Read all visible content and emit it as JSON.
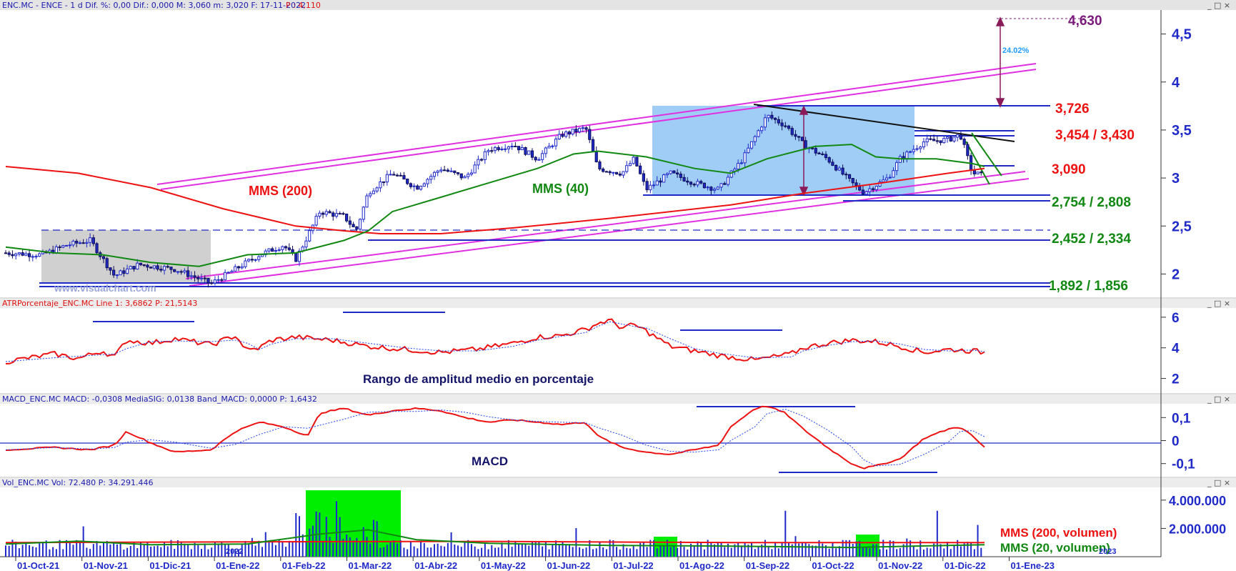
{
  "window": {
    "header_main": "ENC.MC - ENCE -  1 d  Dif. %: 0,00  Dif.: 0,000  M: 3,060  m: 3,020  F: 17-11-2022",
    "header_main_p": "P : 4,110",
    "header_atr": "ATRPorcentaje_ENC.MC  Line 1: 3,6862  P: 21,5143",
    "header_macd": "MACD_ENC.MC  MACD: -0,0308  MediaSIG: 0,0138  Band_MACD: 0,0000  P: 1,6432",
    "header_vol": "Vol_ENC.MC  Vol: 72.480  P: 34.291.446",
    "window_buttons": "_ □ ×",
    "watermark": "www.visualchart.com",
    "year_marker": "2022",
    "year_marker_2": "2023"
  },
  "colors": {
    "up_candle": "#1f2ac8",
    "mms200": "#ee1111",
    "mms40": "#118811",
    "channel": "#e030e0",
    "range_box": "#8fc4f5",
    "grey_box": "#c8c8c8",
    "level_line": "#1f2ac8",
    "target": "#7a1a7a",
    "green_box": "#00ee00",
    "axis_text": "#1f2ac8"
  },
  "chart_data": [
    {
      "type": "candlestick",
      "title": "ENC.MC - ENCE",
      "x_ticks": [
        "01-Oct-21",
        "01-Nov-21",
        "01-Dic-21",
        "01-Ene-22",
        "01-Feb-22",
        "01-Mar-22",
        "01-Abr-22",
        "01-May-22",
        "01-Jun-22",
        "01-Jul-22",
        "01-Ago-22",
        "01-Sep-22",
        "01-Oct-22",
        "01-Nov-22",
        "01-Dic-22",
        "01-Ene-23"
      ],
      "y_ticks": [
        "4,5",
        "4",
        "3,5",
        "3",
        "2,5",
        "2"
      ],
      "ylim": [
        1.75,
        4.75
      ],
      "price_path": [
        [
          0,
          2.22
        ],
        [
          0.03,
          2.2
        ],
        [
          0.05,
          2.3
        ],
        [
          0.07,
          2.35
        ],
        [
          0.09,
          1.98
        ],
        [
          0.11,
          2.1
        ],
        [
          0.14,
          2.05
        ],
        [
          0.17,
          1.9
        ],
        [
          0.19,
          2.05
        ],
        [
          0.21,
          2.2
        ],
        [
          0.23,
          2.3
        ],
        [
          0.24,
          2.15
        ],
        [
          0.26,
          2.65
        ],
        [
          0.28,
          2.6
        ],
        [
          0.29,
          2.45
        ],
        [
          0.3,
          2.85
        ],
        [
          0.32,
          3.05
        ],
        [
          0.34,
          2.9
        ],
        [
          0.36,
          3.1
        ],
        [
          0.38,
          3.0
        ],
        [
          0.4,
          3.3
        ],
        [
          0.42,
          3.35
        ],
        [
          0.44,
          3.2
        ],
        [
          0.46,
          3.45
        ],
        [
          0.48,
          3.52
        ],
        [
          0.49,
          3.1
        ],
        [
          0.51,
          3.05
        ],
        [
          0.52,
          3.2
        ],
        [
          0.53,
          2.88
        ],
        [
          0.55,
          3.05
        ],
        [
          0.57,
          2.95
        ],
        [
          0.59,
          2.88
        ],
        [
          0.61,
          3.2
        ],
        [
          0.63,
          3.65
        ],
        [
          0.645,
          3.55
        ],
        [
          0.66,
          3.35
        ],
        [
          0.68,
          3.2
        ],
        [
          0.7,
          2.95
        ],
        [
          0.71,
          2.85
        ],
        [
          0.73,
          3.0
        ],
        [
          0.74,
          3.2
        ],
        [
          0.76,
          3.38
        ],
        [
          0.78,
          3.4
        ],
        [
          0.79,
          3.45
        ],
        [
          0.8,
          3.05
        ],
        [
          0.81,
          3.03
        ]
      ],
      "mms200_path": [
        [
          0,
          3.12
        ],
        [
          0.06,
          3.05
        ],
        [
          0.12,
          2.9
        ],
        [
          0.18,
          2.68
        ],
        [
          0.24,
          2.5
        ],
        [
          0.28,
          2.45
        ],
        [
          0.31,
          2.42
        ],
        [
          0.36,
          2.42
        ],
        [
          0.42,
          2.48
        ],
        [
          0.5,
          2.58
        ],
        [
          0.6,
          2.72
        ],
        [
          0.66,
          2.84
        ],
        [
          0.72,
          2.94
        ],
        [
          0.78,
          3.05
        ],
        [
          0.81,
          3.1
        ]
      ],
      "mms40_path": [
        [
          0,
          2.28
        ],
        [
          0.04,
          2.22
        ],
        [
          0.08,
          2.2
        ],
        [
          0.12,
          2.12
        ],
        [
          0.16,
          2.08
        ],
        [
          0.2,
          2.2
        ],
        [
          0.24,
          2.22
        ],
        [
          0.28,
          2.35
        ],
        [
          0.3,
          2.45
        ],
        [
          0.32,
          2.65
        ],
        [
          0.36,
          2.8
        ],
        [
          0.4,
          2.95
        ],
        [
          0.44,
          3.1
        ],
        [
          0.47,
          3.25
        ],
        [
          0.49,
          3.28
        ],
        [
          0.53,
          3.22
        ],
        [
          0.57,
          3.1
        ],
        [
          0.6,
          3.05
        ],
        [
          0.63,
          3.2
        ],
        [
          0.67,
          3.33
        ],
        [
          0.7,
          3.35
        ],
        [
          0.72,
          3.22
        ],
        [
          0.74,
          3.2
        ],
        [
          0.77,
          3.2
        ],
        [
          0.8,
          3.15
        ],
        [
          0.81,
          3.12
        ]
      ],
      "annotations": {
        "mms200_label": "MMS (200)",
        "mms40_label": "MMS (40)",
        "target_value": "4,630",
        "target_pct": "24.02%",
        "resistance_1": "3,726",
        "resistance_2": "3,454 / 3,430",
        "support_current": "3,090",
        "support_1": "2,754 / 2,808",
        "support_2": "2,452 / 2,334",
        "support_3": "1,892 / 1,856"
      },
      "levels": [
        3.726,
        3.454,
        3.43,
        3.09,
        2.808,
        2.754,
        2.452,
        2.334,
        1.892,
        1.856,
        4.63
      ],
      "last_close": 3.03
    },
    {
      "type": "line",
      "title": "ATRPorcentaje_ENC.MC",
      "caption": "Rango de amplitud medio en porcentaje",
      "y_ticks": [
        "6",
        "4",
        "2"
      ],
      "ylim": [
        1.0,
        6.6
      ],
      "path": [
        [
          0,
          3.1
        ],
        [
          0.04,
          3.6
        ],
        [
          0.06,
          3.3
        ],
        [
          0.08,
          3.8
        ],
        [
          0.09,
          3.4
        ],
        [
          0.1,
          4.5
        ],
        [
          0.12,
          4.3
        ],
        [
          0.14,
          4.6
        ],
        [
          0.17,
          4.2
        ],
        [
          0.19,
          4.8
        ],
        [
          0.2,
          3.8
        ],
        [
          0.21,
          4.0
        ],
        [
          0.22,
          4.5
        ],
        [
          0.24,
          4.7
        ],
        [
          0.27,
          4.5
        ],
        [
          0.3,
          4.1
        ],
        [
          0.33,
          3.9
        ],
        [
          0.36,
          3.7
        ],
        [
          0.39,
          3.9
        ],
        [
          0.42,
          4.3
        ],
        [
          0.44,
          4.7
        ],
        [
          0.46,
          4.8
        ],
        [
          0.48,
          5.2
        ],
        [
          0.49,
          5.6
        ],
        [
          0.5,
          5.8
        ],
        [
          0.51,
          5.3
        ],
        [
          0.52,
          5.5
        ],
        [
          0.53,
          5.1
        ],
        [
          0.55,
          4.1
        ],
        [
          0.57,
          3.8
        ],
        [
          0.59,
          3.5
        ],
        [
          0.62,
          3.2
        ],
        [
          0.65,
          3.6
        ],
        [
          0.66,
          4.0
        ],
        [
          0.68,
          4.3
        ],
        [
          0.7,
          4.5
        ],
        [
          0.72,
          4.4
        ],
        [
          0.74,
          4.1
        ],
        [
          0.76,
          3.7
        ],
        [
          0.78,
          3.9
        ],
        [
          0.8,
          3.8
        ],
        [
          0.81,
          3.7
        ]
      ]
    },
    {
      "type": "line",
      "title": "MACD_ENC.MC",
      "caption": "MACD",
      "y_ticks": [
        "0,1",
        "0",
        "-0,1"
      ],
      "ylim": [
        -0.16,
        0.16
      ],
      "path": [
        [
          0,
          -0.04
        ],
        [
          0.04,
          -0.03
        ],
        [
          0.07,
          -0.04
        ],
        [
          0.09,
          -0.02
        ],
        [
          0.1,
          0.04
        ],
        [
          0.12,
          -0.01
        ],
        [
          0.14,
          -0.05
        ],
        [
          0.17,
          -0.04
        ],
        [
          0.19,
          0.04
        ],
        [
          0.21,
          0.08
        ],
        [
          0.23,
          0.06
        ],
        [
          0.25,
          0.02
        ],
        [
          0.26,
          0.12
        ],
        [
          0.28,
          0.14
        ],
        [
          0.3,
          0.11
        ],
        [
          0.32,
          0.13
        ],
        [
          0.34,
          0.14
        ],
        [
          0.36,
          0.13
        ],
        [
          0.38,
          0.1
        ],
        [
          0.4,
          0.08
        ],
        [
          0.42,
          0.09
        ],
        [
          0.44,
          0.08
        ],
        [
          0.46,
          0.07
        ],
        [
          0.48,
          0.08
        ],
        [
          0.49,
          0.02
        ],
        [
          0.51,
          -0.03
        ],
        [
          0.53,
          -0.05
        ],
        [
          0.55,
          -0.06
        ],
        [
          0.57,
          -0.04
        ],
        [
          0.59,
          -0.02
        ],
        [
          0.6,
          0.06
        ],
        [
          0.62,
          0.14
        ],
        [
          0.63,
          0.15
        ],
        [
          0.645,
          0.12
        ],
        [
          0.66,
          0.05
        ],
        [
          0.68,
          -0.03
        ],
        [
          0.7,
          -0.1
        ],
        [
          0.71,
          -0.12
        ],
        [
          0.72,
          -0.11
        ],
        [
          0.74,
          -0.08
        ],
        [
          0.76,
          0.01
        ],
        [
          0.78,
          0.05
        ],
        [
          0.79,
          0.06
        ],
        [
          0.8,
          0.02
        ],
        [
          0.81,
          -0.03
        ]
      ]
    },
    {
      "type": "bar",
      "title": "Vol_ENC.MC",
      "y_ticks": [
        "4.000.000",
        "2.000.000"
      ],
      "ylim": [
        0,
        4900000
      ],
      "series": [
        {
          "name": "MMS (200, volumen)",
          "color": "#ee1111"
        },
        {
          "name": "MMS (20, volumen)",
          "color": "#118811"
        }
      ]
    }
  ]
}
